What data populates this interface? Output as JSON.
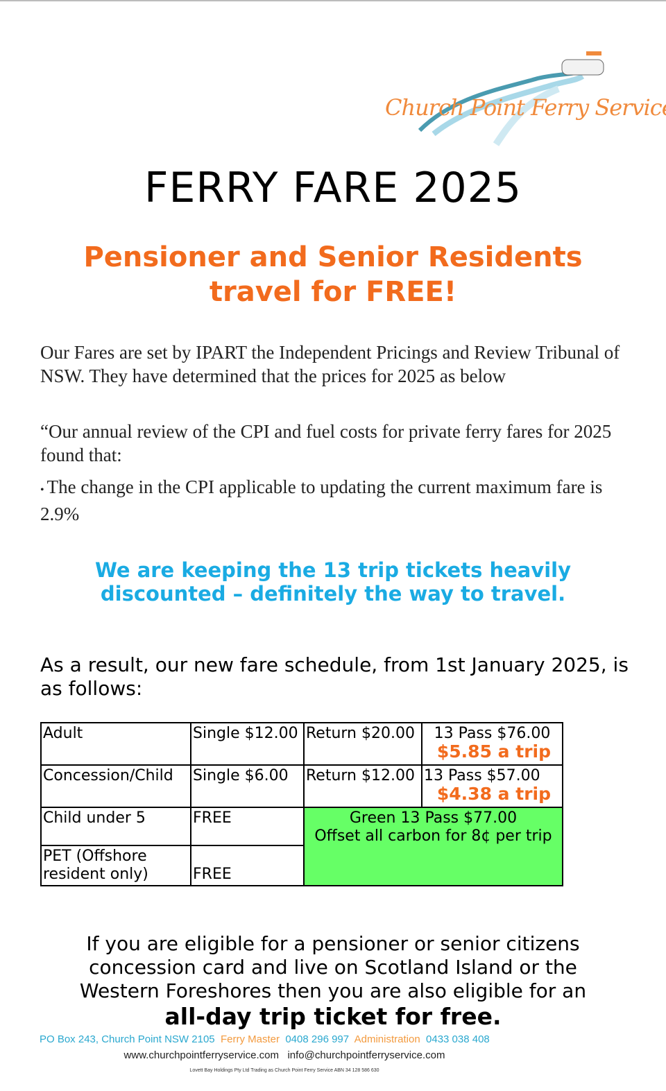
{
  "logo": {
    "text": "Church Point Ferry Service"
  },
  "title": "FERRY FARE 2025",
  "headline": {
    "line1": "Pensioner and Senior Residents",
    "line2": "travel for FREE!"
  },
  "intro": "Our Fares are set by IPART the Independent Pricings and Review Tribunal of NSW. They have determined that the prices for 2025 as below",
  "quote": "“Our annual review of the CPI and fuel costs for private ferry fares for 2025 found that:",
  "bullet": "The change in the CPI applicable to updating the current maximum fare is 2.9%",
  "highlight": {
    "line1": "We are keeping the 13 trip tickets heavily",
    "line2": "discounted – definitely the way to travel."
  },
  "result": "As a result, our new fare schedule, from 1st January 2025, is as follows:",
  "table": {
    "adult": {
      "label": "Adult",
      "single": "Single $12.00",
      "return": "Return $20.00",
      "pass": "13 Pass $76.00",
      "per_trip": "$5.85 a trip"
    },
    "concession": {
      "label": "Concession/Child",
      "single": "Single $6.00",
      "return": "Return $12.00",
      "pass": "13 Pass $57.00",
      "per_trip": "$4.38 a trip"
    },
    "under5": {
      "label": "Child under 5",
      "single": "FREE",
      "green_pass": "Green 13 Pass $77.00",
      "green_offset": "Offset all carbon for 8¢ per trip"
    },
    "pet": {
      "label": "PET (Offshore resident only)",
      "single": "FREE"
    },
    "green_color": "#66ff66"
  },
  "bottom": {
    "text": "If you are eligible for a pensioner or senior citizens concession card and live on Scotland Island or the Western Foreshores then you are also eligible for an",
    "bold": "all-day trip ticket for free."
  },
  "footer": {
    "address": "PO Box 243, Church Point NSW 2105",
    "ferry_master_label": "Ferry Master",
    "ferry_master_phone": "0408 296 997",
    "admin_label": "Administration",
    "admin_phone": "0433 038 408",
    "website": "www.churchpointferryservice.com",
    "email": "info@churchpointferryservice.com",
    "legal": "Lovett Bay Holdings Pty Ltd Trading as Church Point Ferry Service    ABN 34 128 586 630"
  },
  "colors": {
    "orange": "#f26b1d",
    "blue": "#1aabe3"
  }
}
